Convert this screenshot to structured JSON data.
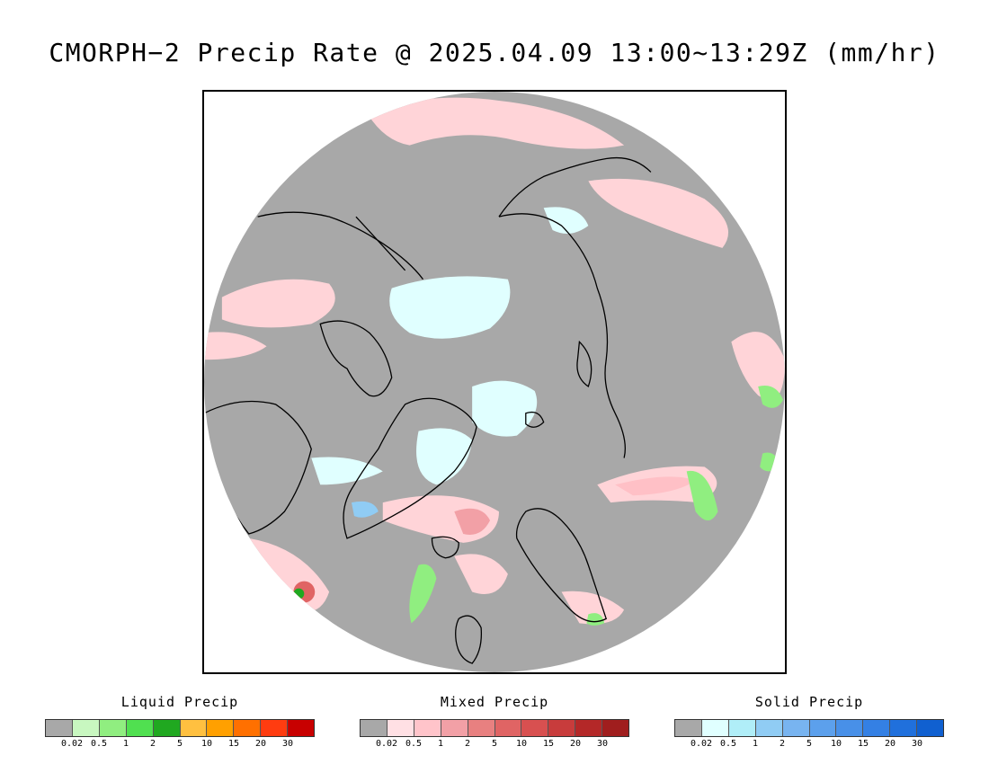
{
  "title": "CMORPH−2 Precip Rate @ 2025.04.09 13:00~13:29Z (mm/hr)",
  "map": {
    "projection": "north-polar-stereographic",
    "background_color": "#a8a8a8",
    "coastline_color": "#000000"
  },
  "legends": [
    {
      "title": "Liquid Precip",
      "colors": [
        "#a8a8a8",
        "#c8f7c0",
        "#90ee80",
        "#50e050",
        "#20a820",
        "#ffc040",
        "#ffa000",
        "#ff7000",
        "#ff3c10",
        "#c80000"
      ],
      "ticks": [
        "0.02",
        "0.5",
        "1",
        "2",
        "5",
        "10",
        "15",
        "20",
        "30"
      ]
    },
    {
      "title": "Mixed Precip",
      "colors": [
        "#a8a8a8",
        "#ffe0e4",
        "#ffc4ca",
        "#f2a0a6",
        "#e88080",
        "#e06464",
        "#d85050",
        "#c83c3c",
        "#b42828",
        "#a01e1e"
      ],
      "ticks": [
        "0.02",
        "0.5",
        "1",
        "2",
        "5",
        "10",
        "15",
        "20",
        "30"
      ]
    },
    {
      "title": "Solid Precip",
      "colors": [
        "#a8a8a8",
        "#e0ffff",
        "#b0eef8",
        "#90ccf4",
        "#78b4f0",
        "#5ca0ec",
        "#4890e8",
        "#3480e4",
        "#2070dc",
        "#1060d0"
      ],
      "ticks": [
        "0.02",
        "0.5",
        "1",
        "2",
        "5",
        "10",
        "15",
        "20",
        "30"
      ]
    }
  ]
}
